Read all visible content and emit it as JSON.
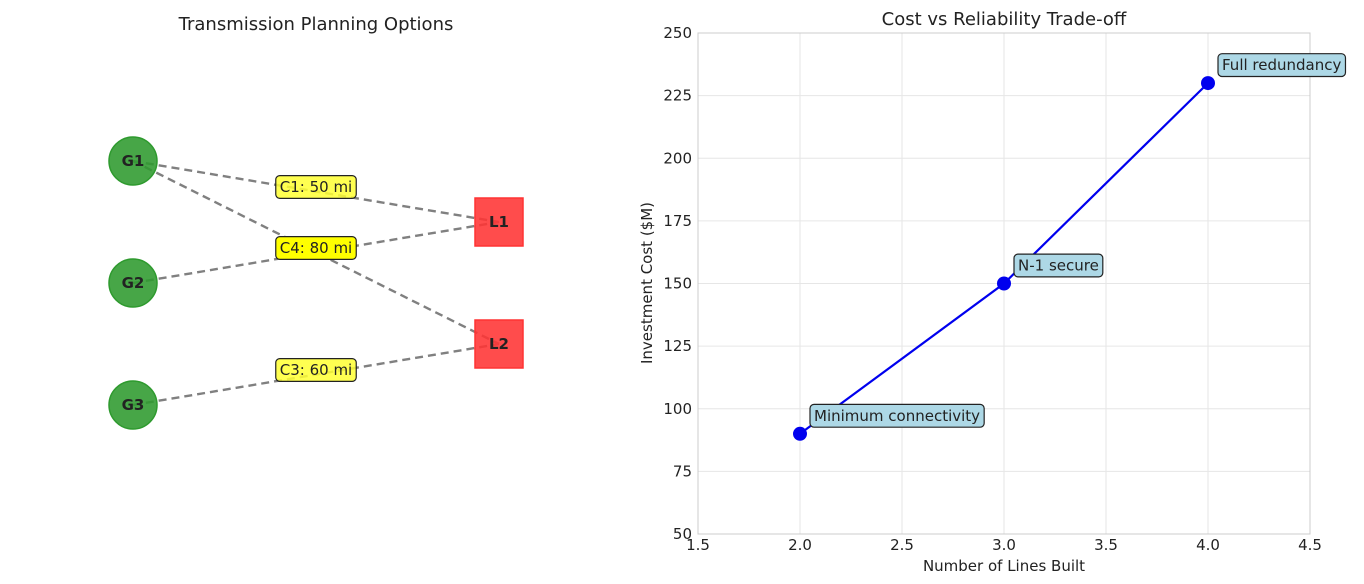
{
  "chart_data": [
    {
      "type": "diagram",
      "title": "Transmission Planning Options",
      "nodes": [
        {
          "id": "G1",
          "label": "G1",
          "kind": "generator",
          "color": "#2e9a2e"
        },
        {
          "id": "G2",
          "label": "G2",
          "kind": "generator",
          "color": "#2e9a2e"
        },
        {
          "id": "G3",
          "label": "G3",
          "kind": "generator",
          "color": "#2e9a2e"
        },
        {
          "id": "L1",
          "label": "L1",
          "kind": "load",
          "color": "#ff3333"
        },
        {
          "id": "L2",
          "label": "L2",
          "kind": "load",
          "color": "#ff3333"
        }
      ],
      "edges": [
        {
          "from": "G1",
          "to": "L1",
          "label": "C1: 50 mi",
          "highlight": false
        },
        {
          "from": "G1",
          "to": "L2",
          "label": "",
          "highlight": false
        },
        {
          "from": "G2",
          "to": "L1",
          "label": "C4: 80 mi",
          "highlight": true
        },
        {
          "from": "G3",
          "to": "L2",
          "label": "C3: 60 mi",
          "highlight": false
        }
      ],
      "edge_color": "#808080",
      "label_color": "#ffff33",
      "label_color_highlight": "#ffff00"
    },
    {
      "type": "line",
      "title": "Cost vs Reliability Trade-off",
      "xlabel": "Number of Lines Built",
      "ylabel": "Investment Cost ($M)",
      "xlim": [
        1.5,
        4.5
      ],
      "ylim": [
        50,
        250
      ],
      "xticks": [
        "1.5",
        "2.0",
        "2.5",
        "3.0",
        "3.5",
        "4.0",
        "4.5"
      ],
      "yticks": [
        "50",
        "75",
        "100",
        "125",
        "150",
        "175",
        "200",
        "225",
        "250"
      ],
      "grid": true,
      "series": [
        {
          "x": [
            2,
            3,
            4
          ],
          "y": [
            90,
            150,
            230
          ],
          "color": "#0000ee"
        }
      ],
      "annotations": [
        {
          "x": 2,
          "y": 90,
          "text": "Minimum connectivity"
        },
        {
          "x": 3,
          "y": 150,
          "text": "N-1 secure"
        },
        {
          "x": 4,
          "y": 230,
          "text": "Full redundancy"
        }
      ],
      "annotation_color": "#add8e6"
    }
  ]
}
